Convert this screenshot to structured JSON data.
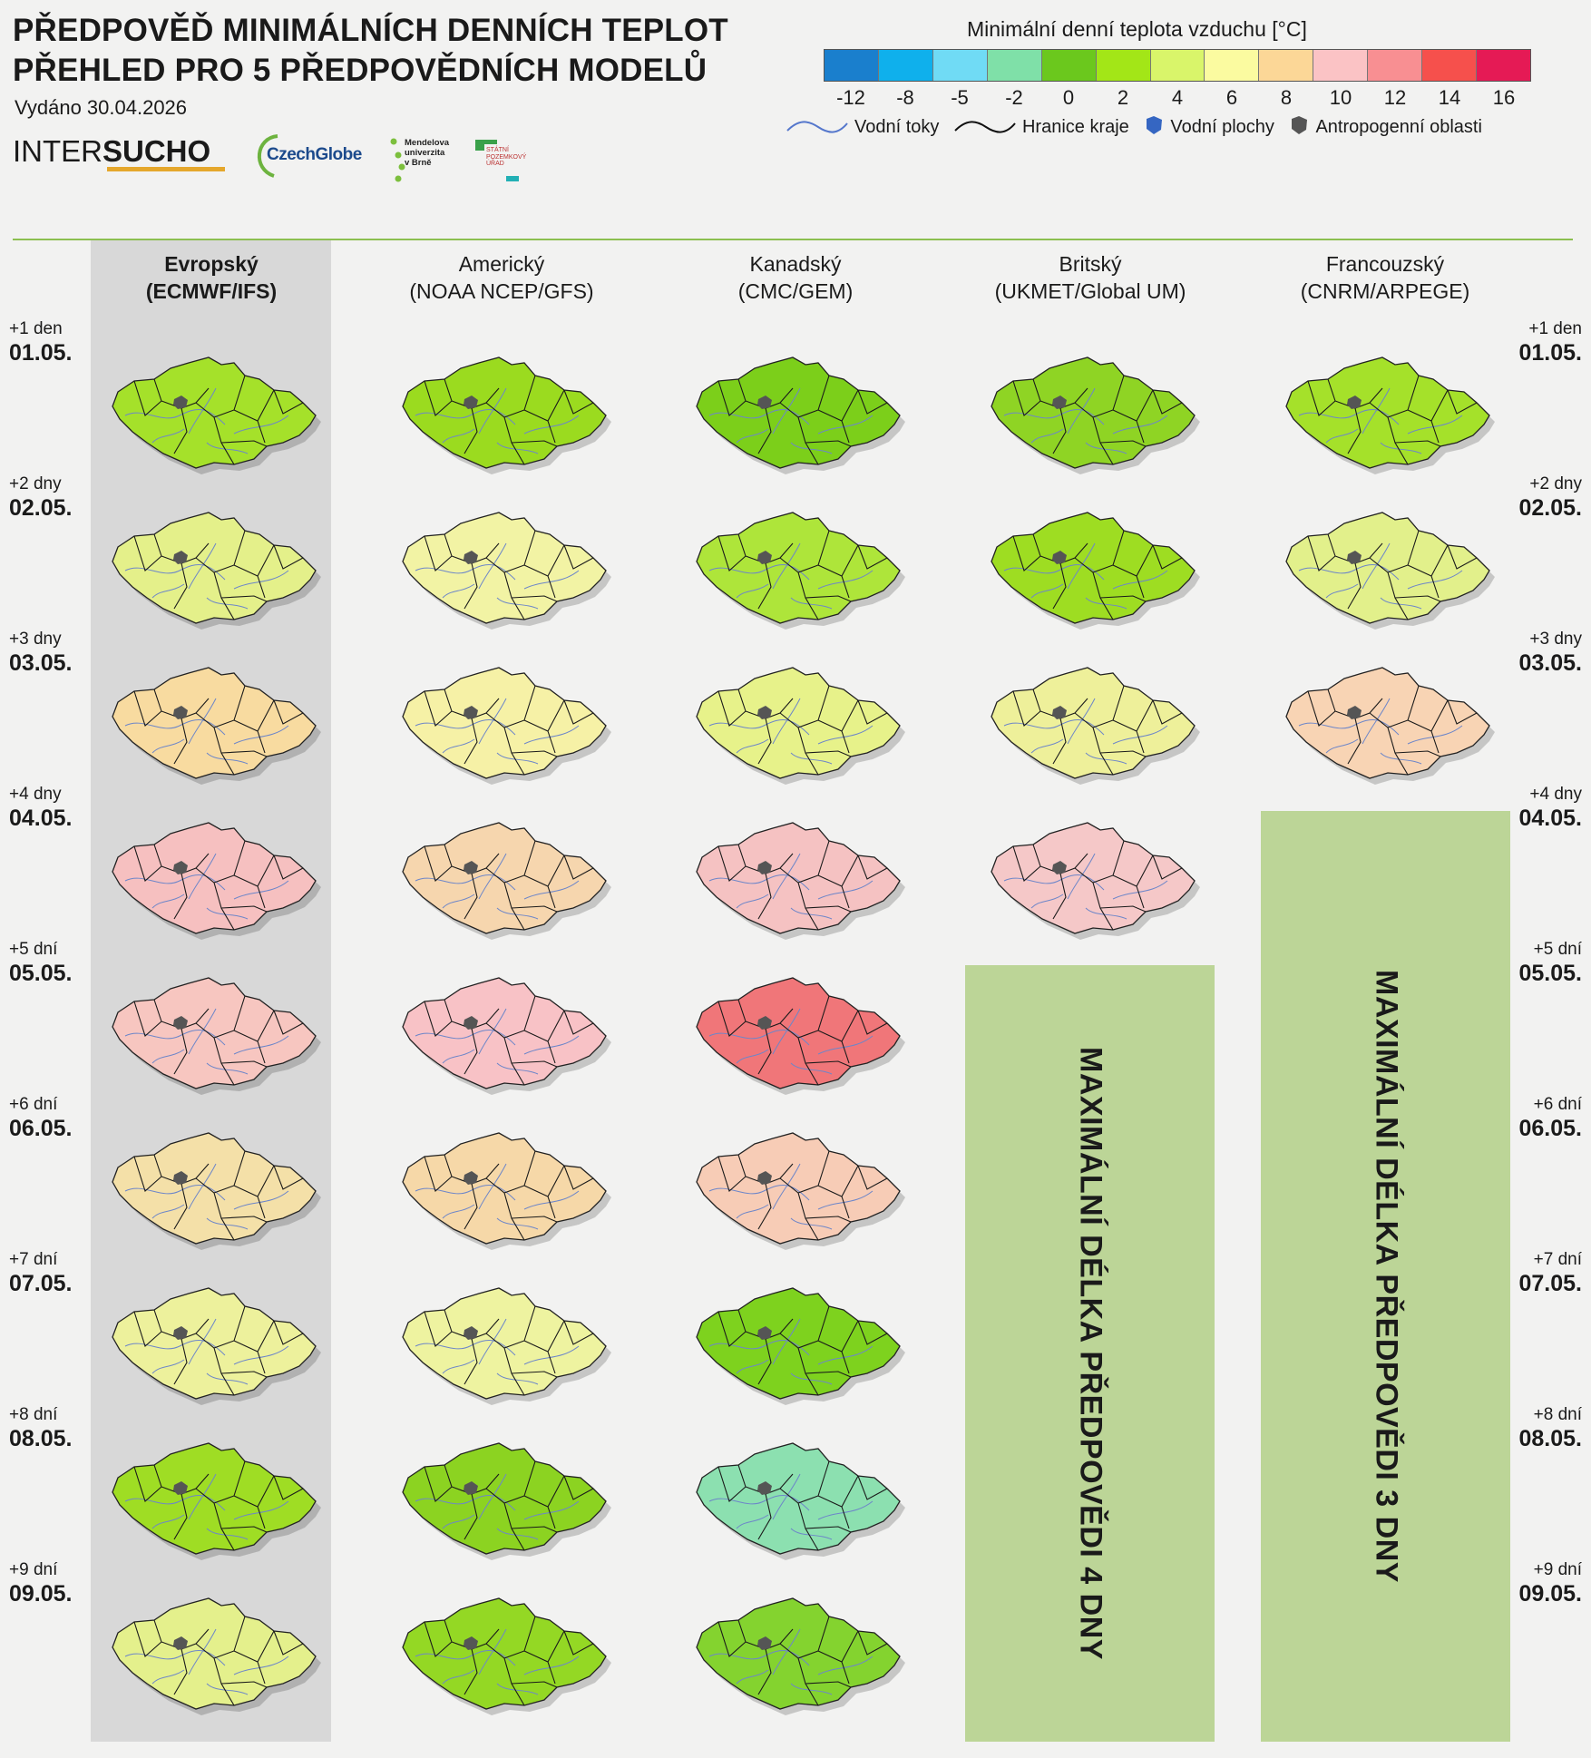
{
  "header": {
    "title_line1": "PŘEDPOVĚĎ MINIMÁLNÍCH DENNÍCH TEPLOT",
    "title_line2": "PŘEHLED PRO 5 PŘEDPOVĚDNÍCH MODELŮ",
    "issued": "Vydáno 30.04.2026"
  },
  "logos": {
    "intersucho_a": "INTER",
    "intersucho_b": "SUCHO",
    "czechglobe": "CzechGlobe",
    "mendel_l1": "Mendelova",
    "mendel_l2": "univerzita",
    "mendel_l3": "v Brně",
    "spu_l1": "STÁTNÍ",
    "spu_l2": "POZEMKOVÝ",
    "spu_l3": "ÚŘAD"
  },
  "legend": {
    "title": "Minimální denní teplota vzduchu [°C]",
    "ticks": [
      "-12",
      "-8",
      "-5",
      "-2",
      "0",
      "2",
      "4",
      "6",
      "8",
      "10",
      "12",
      "14",
      "16"
    ],
    "colors": [
      "#1a7fcd",
      "#0fb0ec",
      "#70dbf5",
      "#7fe0a8",
      "#6bc81d",
      "#a3e617",
      "#d9f56a",
      "#fbfba0",
      "#fcd797",
      "#fbc3c5",
      "#f88f92",
      "#f6504c",
      "#e51a55"
    ],
    "symbols": {
      "rivers": "Vodní toky",
      "borders": "Hranice kraje",
      "water": "Vodní plochy",
      "urban": "Antropogenní oblasti"
    }
  },
  "models": [
    {
      "name": "Evropský",
      "code": "(ECMWF/IFS)"
    },
    {
      "name": "Americký",
      "code": "(NOAA NCEP/GFS)"
    },
    {
      "name": "Kanadský",
      "code": "(CMC/GEM)"
    },
    {
      "name": "Britský",
      "code": "(UKMET/Global UM)"
    },
    {
      "name": "Francouzský",
      "code": "(CNRM/ARPEGE)"
    }
  ],
  "days": [
    {
      "lead": "+1 den",
      "date": "01.05."
    },
    {
      "lead": "+2 dny",
      "date": "02.05."
    },
    {
      "lead": "+3 dny",
      "date": "03.05."
    },
    {
      "lead": "+4 dny",
      "date": "04.05."
    },
    {
      "lead": "+5 dní",
      "date": "05.05."
    },
    {
      "lead": "+6 dní",
      "date": "06.05."
    },
    {
      "lead": "+7 dní",
      "date": "07.05."
    },
    {
      "lead": "+8 dní",
      "date": "08.05."
    },
    {
      "lead": "+9 dní",
      "date": "09.05."
    }
  ],
  "map_fills": [
    [
      "#a5e12a",
      "#9bdb1f",
      "#7ccf1a",
      "#8fd424",
      "#a5e12a"
    ],
    [
      "#e4f08a",
      "#f2f3a4",
      "#aee53a",
      "#9edd22",
      "#e2f08b"
    ],
    [
      "#f8dba0",
      "#f6f1a6",
      "#e7f28a",
      "#eef09a",
      "#f8d4b4"
    ],
    [
      "#f6c0c0",
      "#f6d6ae",
      "#f5c2c2",
      "#f5c8c8",
      null
    ],
    [
      "#f7c6c0",
      "#f8c2c6",
      "#f07679",
      null,
      null
    ],
    [
      "#f4e0a8",
      "#f6d8a8",
      "#f7ccb6",
      null,
      null
    ],
    [
      "#edf19c",
      "#eef3a0",
      "#7ed21e",
      null,
      null
    ],
    [
      "#9fdd24",
      "#8cd321",
      "#8ce0b0",
      null,
      null
    ],
    [
      "#e4f08c",
      "#94d824",
      "#84d32f",
      null,
      null
    ]
  ],
  "max_boxes": {
    "uk": "MAXIMÁLNÍ DÉLKA PŘEDPOVĚDI 4 DNY",
    "fr": "MAXIMÁLNÍ DÉLKA PŘEDPOVĚDI 3 DNY"
  }
}
